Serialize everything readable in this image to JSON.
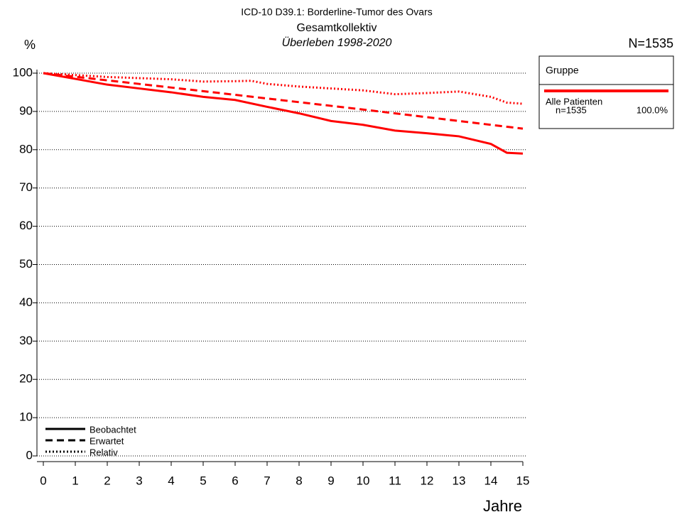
{
  "chart_data": {
    "type": "line",
    "title": "ICD-10 D39.1: Borderline-Tumor des Ovars",
    "subtitle": "Gesamtkollektiv",
    "subtitle2": "Überleben 1998-2020",
    "y_label": "%",
    "x_label": "Jahre",
    "n_total": "N=1535",
    "group_legend": {
      "title": "Gruppe",
      "label": "Alle Patienten",
      "n": "n=1535",
      "percent": "100.0%",
      "color": "#ff0000"
    },
    "xlim": [
      0,
      15
    ],
    "xticks": [
      0,
      1,
      2,
      3,
      4,
      5,
      6,
      7,
      8,
      9,
      10,
      11,
      12,
      13,
      14,
      15
    ],
    "ylim": [
      0,
      100
    ],
    "yticks": [
      0,
      10,
      20,
      30,
      40,
      50,
      60,
      70,
      80,
      90,
      100
    ],
    "grid": true,
    "series": [
      {
        "name": "Beobachtet",
        "color": "#ff0000",
        "style": "solid",
        "x": [
          0,
          1,
          2,
          3,
          4,
          5,
          6,
          7,
          8,
          9,
          10,
          11,
          12,
          13,
          14,
          14.5,
          15
        ],
        "values": [
          100,
          98.5,
          97,
          96,
          95,
          93.8,
          93,
          91.2,
          89.5,
          87.5,
          86.5,
          85,
          84.3,
          83.5,
          81.5,
          79.2,
          79
        ]
      },
      {
        "name": "Erwartet",
        "color": "#ff0000",
        "style": "dashed",
        "x": [
          0,
          5,
          10,
          15
        ],
        "values": [
          100,
          95.3,
          90.5,
          85.5
        ]
      },
      {
        "name": "Relativ",
        "color": "#ff0000",
        "style": "dotted",
        "x": [
          0,
          1,
          2,
          3,
          4,
          5,
          6,
          6.5,
          7,
          8,
          9,
          10,
          11,
          12,
          13,
          14,
          14.5,
          15
        ],
        "values": [
          100,
          99.5,
          99,
          98.7,
          98.4,
          97.8,
          97.9,
          98,
          97.2,
          96.5,
          96,
          95.5,
          94.5,
          94.8,
          95.2,
          93.8,
          92.3,
          92
        ]
      }
    ]
  }
}
